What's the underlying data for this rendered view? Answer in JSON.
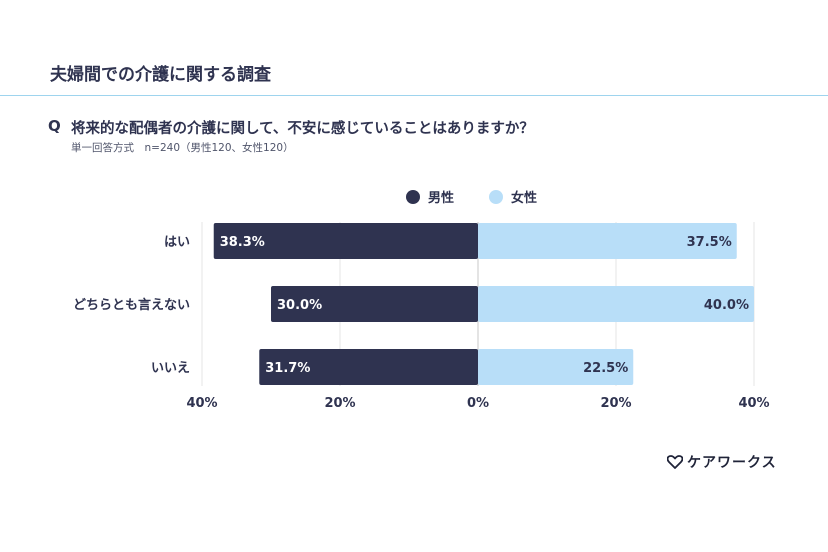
{
  "header": {
    "title": "夫婦間での介護に関する調査"
  },
  "question": {
    "mark": "Q",
    "text": "将来的な配偶者の介護に関して、不安に感じていることはありますか？",
    "meta": "単一回答方式　n=240（男性120、女性120）"
  },
  "logo": {
    "text": "ケアワークス",
    "icon": "heart-icon"
  },
  "chart_data": {
    "type": "bar",
    "orientation": "horizontal-diverging",
    "categories": [
      "はい",
      "どちらとも言えない",
      "いいえ"
    ],
    "series": [
      {
        "name": "男性",
        "values": [
          38.3,
          30.0,
          31.7
        ],
        "color": "#2f3350",
        "direction": "left"
      },
      {
        "name": "女性",
        "values": [
          37.5,
          40.0,
          22.5
        ],
        "color": "#b8def8",
        "direction": "right"
      }
    ],
    "value_labels": {
      "男性": [
        "38.3%",
        "30.0%",
        "31.7%"
      ],
      "女性": [
        "37.5%",
        "40.0%",
        "22.5%"
      ]
    },
    "x_ticks": [
      "40%",
      "20%",
      "0%",
      "20%",
      "40%"
    ],
    "x_tick_values": [
      -40,
      -20,
      0,
      20,
      40
    ],
    "xlim": [
      -40,
      40
    ],
    "grid": true,
    "legend": "top-center"
  }
}
